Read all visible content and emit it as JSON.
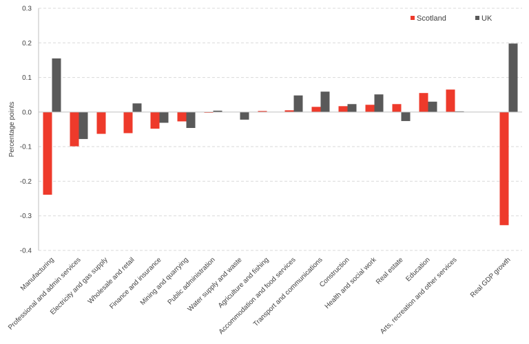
{
  "chart_data": {
    "type": "bar",
    "title": "",
    "xlabel": "",
    "ylabel": "Percentage points",
    "ylim": [
      -0.4,
      0.3
    ],
    "yticks": [
      0.3,
      0.2,
      0.1,
      0.0,
      -0.1,
      -0.2,
      -0.3,
      -0.4
    ],
    "ytick_labels": [
      "0.3",
      "0.2",
      "0.1",
      "0.0",
      "-0.1",
      "-0.2",
      "-0.3",
      "-0.4"
    ],
    "grid": "horizontal dashed",
    "legend_position": "top-right",
    "categories": [
      "Manufacturing",
      "Professional and admin services",
      "Electricity and gas supply",
      "Wholesale and retail",
      "Finance and insurance",
      "Mining and quarrying",
      "Public administration",
      "Water supply and waste",
      "Agriculture and fishing",
      "Accommodation and food services",
      "Transport and communications",
      "Construction",
      "Health and social work",
      "Real estate",
      "Education",
      "Arts, recreation and other services",
      "",
      "Real GDP growth"
    ],
    "series": [
      {
        "name": "Scotland",
        "color": "#ee3a2b",
        "values": [
          -0.239,
          -0.099,
          -0.063,
          -0.061,
          -0.048,
          -0.027,
          -0.002,
          0.0,
          0.003,
          0.005,
          0.015,
          0.017,
          0.021,
          0.023,
          0.055,
          0.065,
          null,
          -0.327
        ]
      },
      {
        "name": "UK",
        "color": "#595959",
        "values": [
          0.155,
          -0.078,
          0.0,
          0.025,
          -0.031,
          -0.046,
          0.004,
          -0.022,
          0.0,
          0.048,
          0.059,
          0.023,
          0.051,
          -0.026,
          0.03,
          0.002,
          null,
          0.198
        ]
      }
    ]
  }
}
